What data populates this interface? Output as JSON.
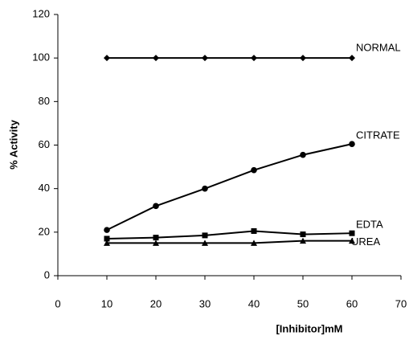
{
  "chart_data": {
    "type": "line",
    "x_label": "[Inhibitor]mM",
    "y_label": "% Activity",
    "x": [
      10,
      20,
      30,
      40,
      50,
      60
    ],
    "series": [
      {
        "name": "NORMAL",
        "color": "#000000",
        "marker": "diamond",
        "values": [
          100,
          100,
          100,
          100,
          100,
          100
        ]
      },
      {
        "name": "CITRATE",
        "color": "#000000",
        "marker": "circle",
        "values": [
          21,
          32,
          40,
          48.5,
          55.5,
          60.5
        ]
      },
      {
        "name": "EDTA",
        "color": "#000000",
        "marker": "square",
        "values": [
          17,
          17.5,
          18.5,
          20.5,
          19,
          19.5
        ]
      },
      {
        "name": "UREA",
        "color": "#000000",
        "marker": "triangle",
        "values": [
          15,
          15,
          15,
          15,
          16,
          16
        ]
      }
    ],
    "xlim": [
      0,
      70
    ],
    "xticks": [
      0,
      10,
      20,
      30,
      40,
      50,
      60,
      70
    ],
    "ylim": [
      0,
      120
    ],
    "yticks": [
      0,
      20,
      40,
      60,
      80,
      100,
      120
    ],
    "grid": false
  }
}
